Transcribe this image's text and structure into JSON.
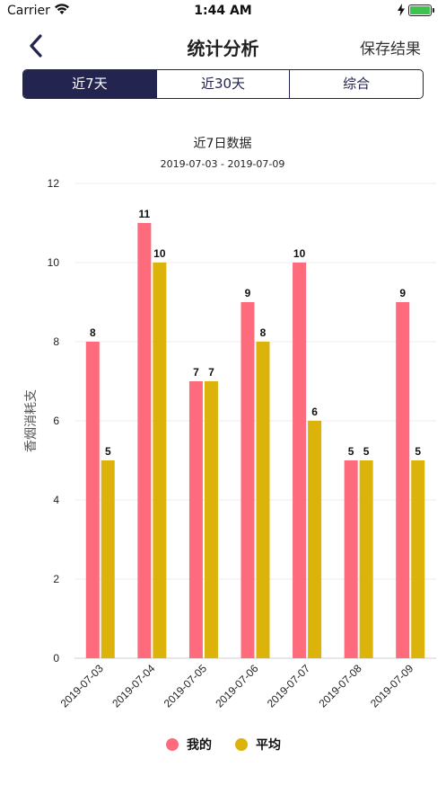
{
  "status": {
    "carrier": "Carrier",
    "time": "1:44 AM",
    "battery_level": 1.0,
    "icons": [
      "wifi-icon",
      "charging-icon",
      "battery-icon"
    ]
  },
  "nav": {
    "title": "统计分析",
    "save_label": "保存结果",
    "back_icon": "chevron-left-icon"
  },
  "tabs": [
    {
      "label": "近7天",
      "active": true
    },
    {
      "label": "近30天",
      "active": false
    },
    {
      "label": "综合",
      "active": false
    }
  ],
  "colors": {
    "accent": "#23244f",
    "mine": "#fd6b7d",
    "average": "#dcb30a"
  },
  "chart_data": {
    "type": "bar",
    "title": "近7日数据",
    "subtitle": "2019-07-03 - 2019-07-09",
    "ylabel": "香烟消耗支",
    "xlabel": "",
    "ylim": [
      0,
      12
    ],
    "yticks": [
      0,
      2,
      4,
      6,
      8,
      10,
      12
    ],
    "grid": true,
    "legend_position": "bottom",
    "categories": [
      "2019-07-03",
      "2019-07-04",
      "2019-07-05",
      "2019-07-06",
      "2019-07-07",
      "2019-07-08",
      "2019-07-09"
    ],
    "series": [
      {
        "name": "我的",
        "values": [
          8,
          11,
          7,
          9,
          10,
          5,
          9
        ],
        "color": "#fd6b7d"
      },
      {
        "name": "平均",
        "values": [
          5,
          10,
          7,
          8,
          6,
          5,
          5
        ],
        "color": "#dcb30a"
      }
    ]
  }
}
